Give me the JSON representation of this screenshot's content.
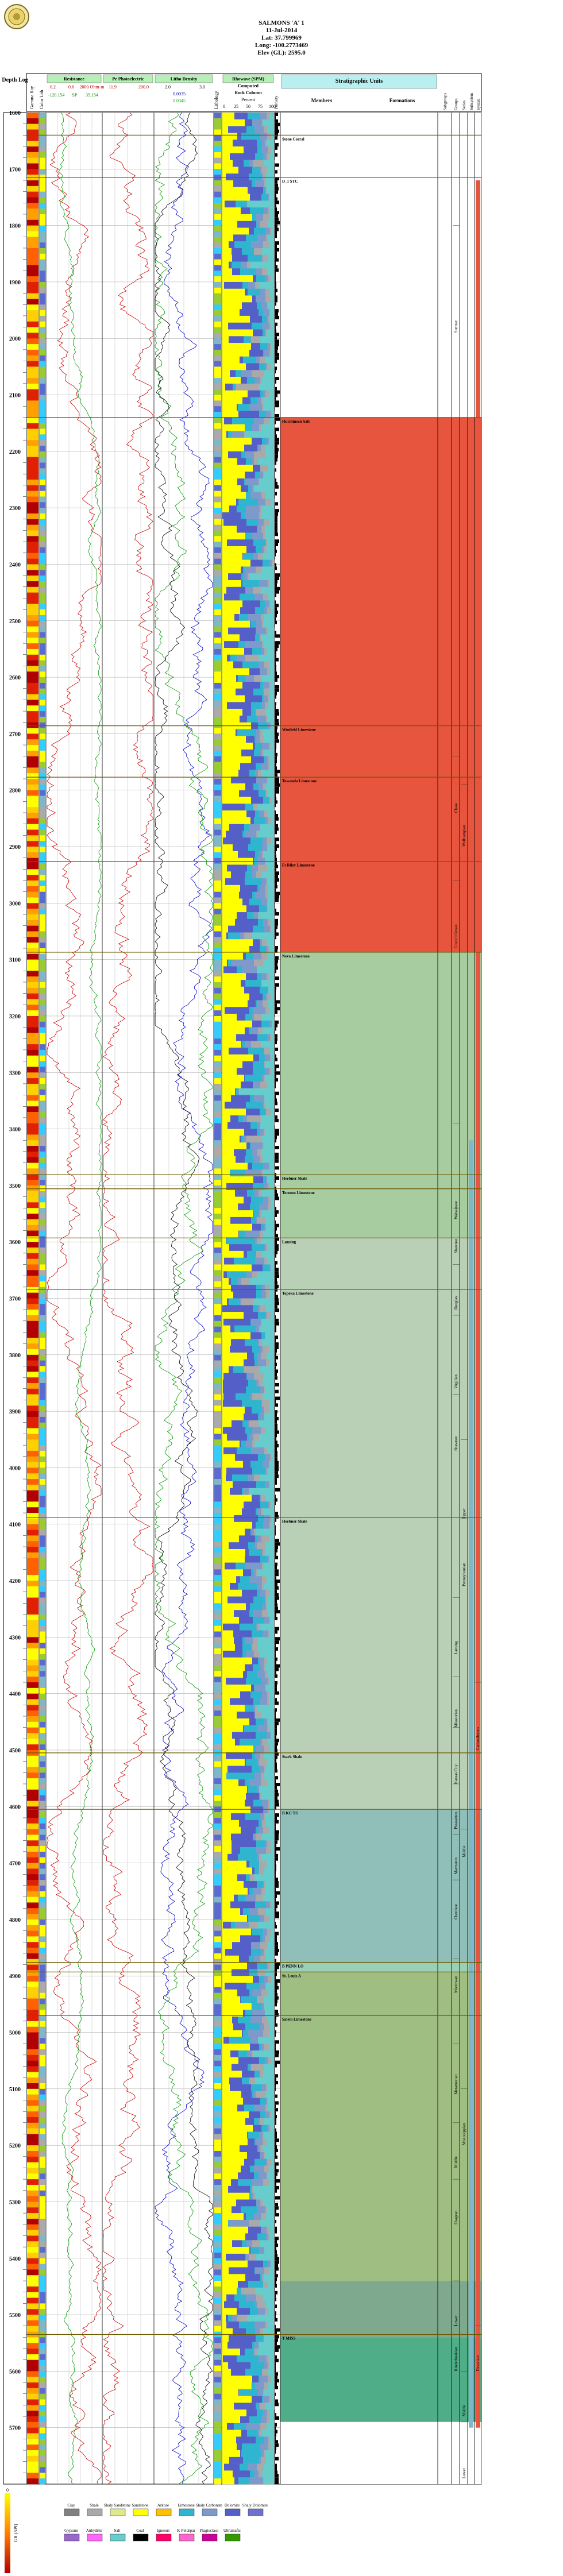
{
  "header": {
    "well_name": "SALMONS 'A' 1",
    "date": "11-Jul-2014",
    "lat": "Lat: 37.799969",
    "long": "Long: -100.2773469",
    "elev": "Elev (GL): 2595.0"
  },
  "tracks": {
    "depth": "Depth Log",
    "gamma_ray": "Gamma Ray",
    "colorlith": "Color Lith",
    "resistance": "Resistance",
    "rt_label": "0.2",
    "res_min": "0.6",
    "res_max": "2000 Ohm-m",
    "sp_label": "-120.154",
    "sp_unit": "SP",
    "sp_max": "35.154",
    "pe_title": "Pe Photoelectric",
    "pe_min": "11.9",
    "pe_max": "200.0",
    "lith_title": "Litho Density",
    "rhob_label": "2.0",
    "rhob_max": "3.0",
    "nphi_label": "0.0035",
    "dphi_label": "0.0345",
    "lithology_track": "Lithology",
    "rock_title": "Rhowave (SPM) Computed Rock Column",
    "rock_percent": "Percent",
    "rock_ticks": [
      "0",
      "25",
      "50",
      "75",
      "100"
    ],
    "porosity": "Porosity",
    "strat_title": "Stratigraphic Units",
    "members": "Members",
    "formations": "Formations",
    "subgroups": "Subgroups",
    "groups": "Groups",
    "series": "Series",
    "subsystem": "Subsystem",
    "system": "System"
  },
  "legend": {
    "scale_top": "0",
    "scale_unit": "GR (API)",
    "scale_bottom": "150",
    "items": [
      {
        "label": "Clay",
        "color": "#808080"
      },
      {
        "label": "Shale",
        "color": "#a9a9a9"
      },
      {
        "label": "Shaly Sandstone",
        "color": "#dfe98a"
      },
      {
        "label": "Sandstone",
        "color": "#ffff00"
      },
      {
        "label": "Arkose",
        "color": "#ffc000"
      },
      {
        "label": "Limestone",
        "color": "#2fb5cf"
      },
      {
        "label": "Shaly Carbonate",
        "color": "#7e9acb"
      },
      {
        "label": "Dolomite",
        "color": "#5460c8"
      },
      {
        "label": "Shaly Dolomite",
        "color": "#7070d0"
      },
      {
        "label": "Gypsum",
        "color": "#9966cc"
      },
      {
        "label": "Anhydrite",
        "color": "#ff66ff"
      },
      {
        "label": "Salt",
        "color": "#66cccc"
      },
      {
        "label": "Coal",
        "color": "#000000"
      },
      {
        "label": "Igneous",
        "color": "#ff0066"
      },
      {
        "label": "K-Feldspar",
        "color": "#ff66cc"
      },
      {
        "label": "Plagioclase",
        "color": "#cc0099"
      },
      {
        "label": "Ultramafic",
        "color": "#339900"
      }
    ]
  },
  "chart_data": {
    "type": "well-log",
    "depth_range": [
      1600,
      5800
    ],
    "depth_ticks": [
      1600,
      1700,
      1800,
      1900,
      2000,
      2100,
      2200,
      2300,
      2400,
      2500,
      2600,
      2700,
      2800,
      2900,
      3000,
      3100,
      3200,
      3300,
      3400,
      3500,
      3600,
      3700,
      3800,
      3900,
      4000,
      4100,
      4200,
      4300,
      4400,
      4500,
      4600,
      4700,
      4800,
      4900,
      5000,
      5100,
      5200,
      5300,
      5400,
      5500,
      5600,
      5700
    ],
    "members": [
      {
        "top": 1640,
        "name": "Stone Corral"
      },
      {
        "top": 1715,
        "name": "D_1 STC"
      },
      {
        "top": 2140,
        "name": "Hutchinson Salt"
      },
      {
        "top": 2686,
        "name": "Winfield Limestone"
      },
      {
        "top": 2777,
        "name": "Towanda Limestone"
      },
      {
        "top": 2926,
        "name": "Ft Riley Limestone"
      },
      {
        "top": 3087,
        "name": "Neva Limestone"
      },
      {
        "top": 3481,
        "name": "Heebner Shale"
      },
      {
        "top": 3506,
        "name": "Toronto Limestone"
      },
      {
        "top": 3593,
        "name": "Lansing"
      },
      {
        "top": 3684,
        "name": "Topeka Limestone"
      },
      {
        "top": 4088,
        "name": "Heebner Shale"
      },
      {
        "top": 4505,
        "name": "Stark Shale"
      },
      {
        "top": 4605,
        "name": "B KC TS"
      },
      {
        "top": 4876,
        "name": "B PENN LO"
      },
      {
        "top": 4893,
        "name": "St. Louis A"
      },
      {
        "top": 4970,
        "name": "Salem Limestone"
      },
      {
        "top": 5535,
        "name": "T MISS"
      }
    ],
    "strat_bands": [
      {
        "top": 1600,
        "bottom": 2140,
        "color": "#ffffff"
      },
      {
        "top": 2140,
        "bottom": 3087,
        "color": "#e8553f"
      },
      {
        "top": 3087,
        "bottom": 3593,
        "color": "#a7cc9f"
      },
      {
        "top": 3593,
        "bottom": 4605,
        "color": "#b9cfb6"
      },
      {
        "top": 4605,
        "bottom": 4876,
        "color": "#8fbfb8"
      },
      {
        "top": 4876,
        "bottom": 4893,
        "color": "#9bcfb8"
      },
      {
        "top": 4893,
        "bottom": 5440,
        "color": "#9fbe82"
      },
      {
        "top": 5440,
        "bottom": 5540,
        "color": "#7fa98e"
      },
      {
        "top": 5540,
        "bottom": 5690,
        "color": "#4fae88"
      },
      {
        "top": 5690,
        "bottom": 5800,
        "color": "#ffffff"
      }
    ],
    "vertical_labels": [
      {
        "track": "groups",
        "top": 1800,
        "bottom": 1990,
        "text": "Sumner"
      },
      {
        "track": "groups",
        "top": 2740,
        "bottom": 2840,
        "text": "Chase"
      },
      {
        "track": "groups",
        "top": 2960,
        "bottom": 3080,
        "text": "Council Grove"
      },
      {
        "track": "groups",
        "top": 3390,
        "bottom": 3560,
        "text": "Wabaunsee"
      },
      {
        "track": "groups",
        "top": 3540,
        "bottom": 3620,
        "text": "Shawnee"
      },
      {
        "track": "groups",
        "top": 3640,
        "bottom": 3720,
        "text": "Douglas"
      },
      {
        "track": "groups",
        "top": 3730,
        "bottom": 3860,
        "text": "Virgilian"
      },
      {
        "track": "groups",
        "top": 3870,
        "bottom": 3970,
        "text": "Shawnee"
      },
      {
        "track": "groups",
        "top": 4230,
        "bottom": 4330,
        "text": "Lansing"
      },
      {
        "track": "groups",
        "top": 4370,
        "bottom": 4460,
        "text": "Missourian"
      },
      {
        "track": "groups",
        "top": 4460,
        "bottom": 4560,
        "text": "Kansas City"
      },
      {
        "track": "groups",
        "top": 4560,
        "bottom": 4640,
        "text": "Pleasanton"
      },
      {
        "track": "groups",
        "top": 4650,
        "bottom": 4720,
        "text": "Marmaton"
      },
      {
        "track": "groups",
        "top": 4730,
        "bottom": 4800,
        "text": "Cherokee"
      },
      {
        "track": "groups",
        "top": 4870,
        "bottom": 4930,
        "text": "Morrowan"
      },
      {
        "track": "groups",
        "top": 5020,
        "bottom": 5110,
        "text": "Meramecian"
      },
      {
        "track": "groups",
        "top": 5160,
        "bottom": 5240,
        "text": "Middle"
      },
      {
        "track": "groups",
        "top": 5260,
        "bottom": 5340,
        "text": "Osagean"
      },
      {
        "track": "groups",
        "top": 5440,
        "bottom": 5520,
        "text": "Lower"
      },
      {
        "track": "groups",
        "top": 5520,
        "bottom": 5600,
        "text": "Kinderhookian"
      },
      {
        "track": "series",
        "top": 2790,
        "bottom": 2900,
        "text": "Wolfcampian"
      },
      {
        "track": "series",
        "top": 3950,
        "bottom": 4090,
        "text": "Upper"
      },
      {
        "track": "series",
        "top": 4090,
        "bottom": 4210,
        "text": "Pennsylvanian"
      },
      {
        "track": "series",
        "top": 4640,
        "bottom": 4690,
        "text": "Middle"
      },
      {
        "track": "series",
        "top": 5100,
        "bottom": 5200,
        "text": "Mississippian"
      },
      {
        "track": "series",
        "top": 5600,
        "bottom": 5680,
        "text": "Middle"
      },
      {
        "track": "series",
        "top": 5690,
        "bottom": 5790,
        "text": "Lower"
      },
      {
        "track": "system",
        "top": 4380,
        "bottom": 4500,
        "text": "Carboniferous"
      },
      {
        "track": "system",
        "top": 5520,
        "bottom": 5600,
        "text": "Devonian"
      }
    ]
  }
}
